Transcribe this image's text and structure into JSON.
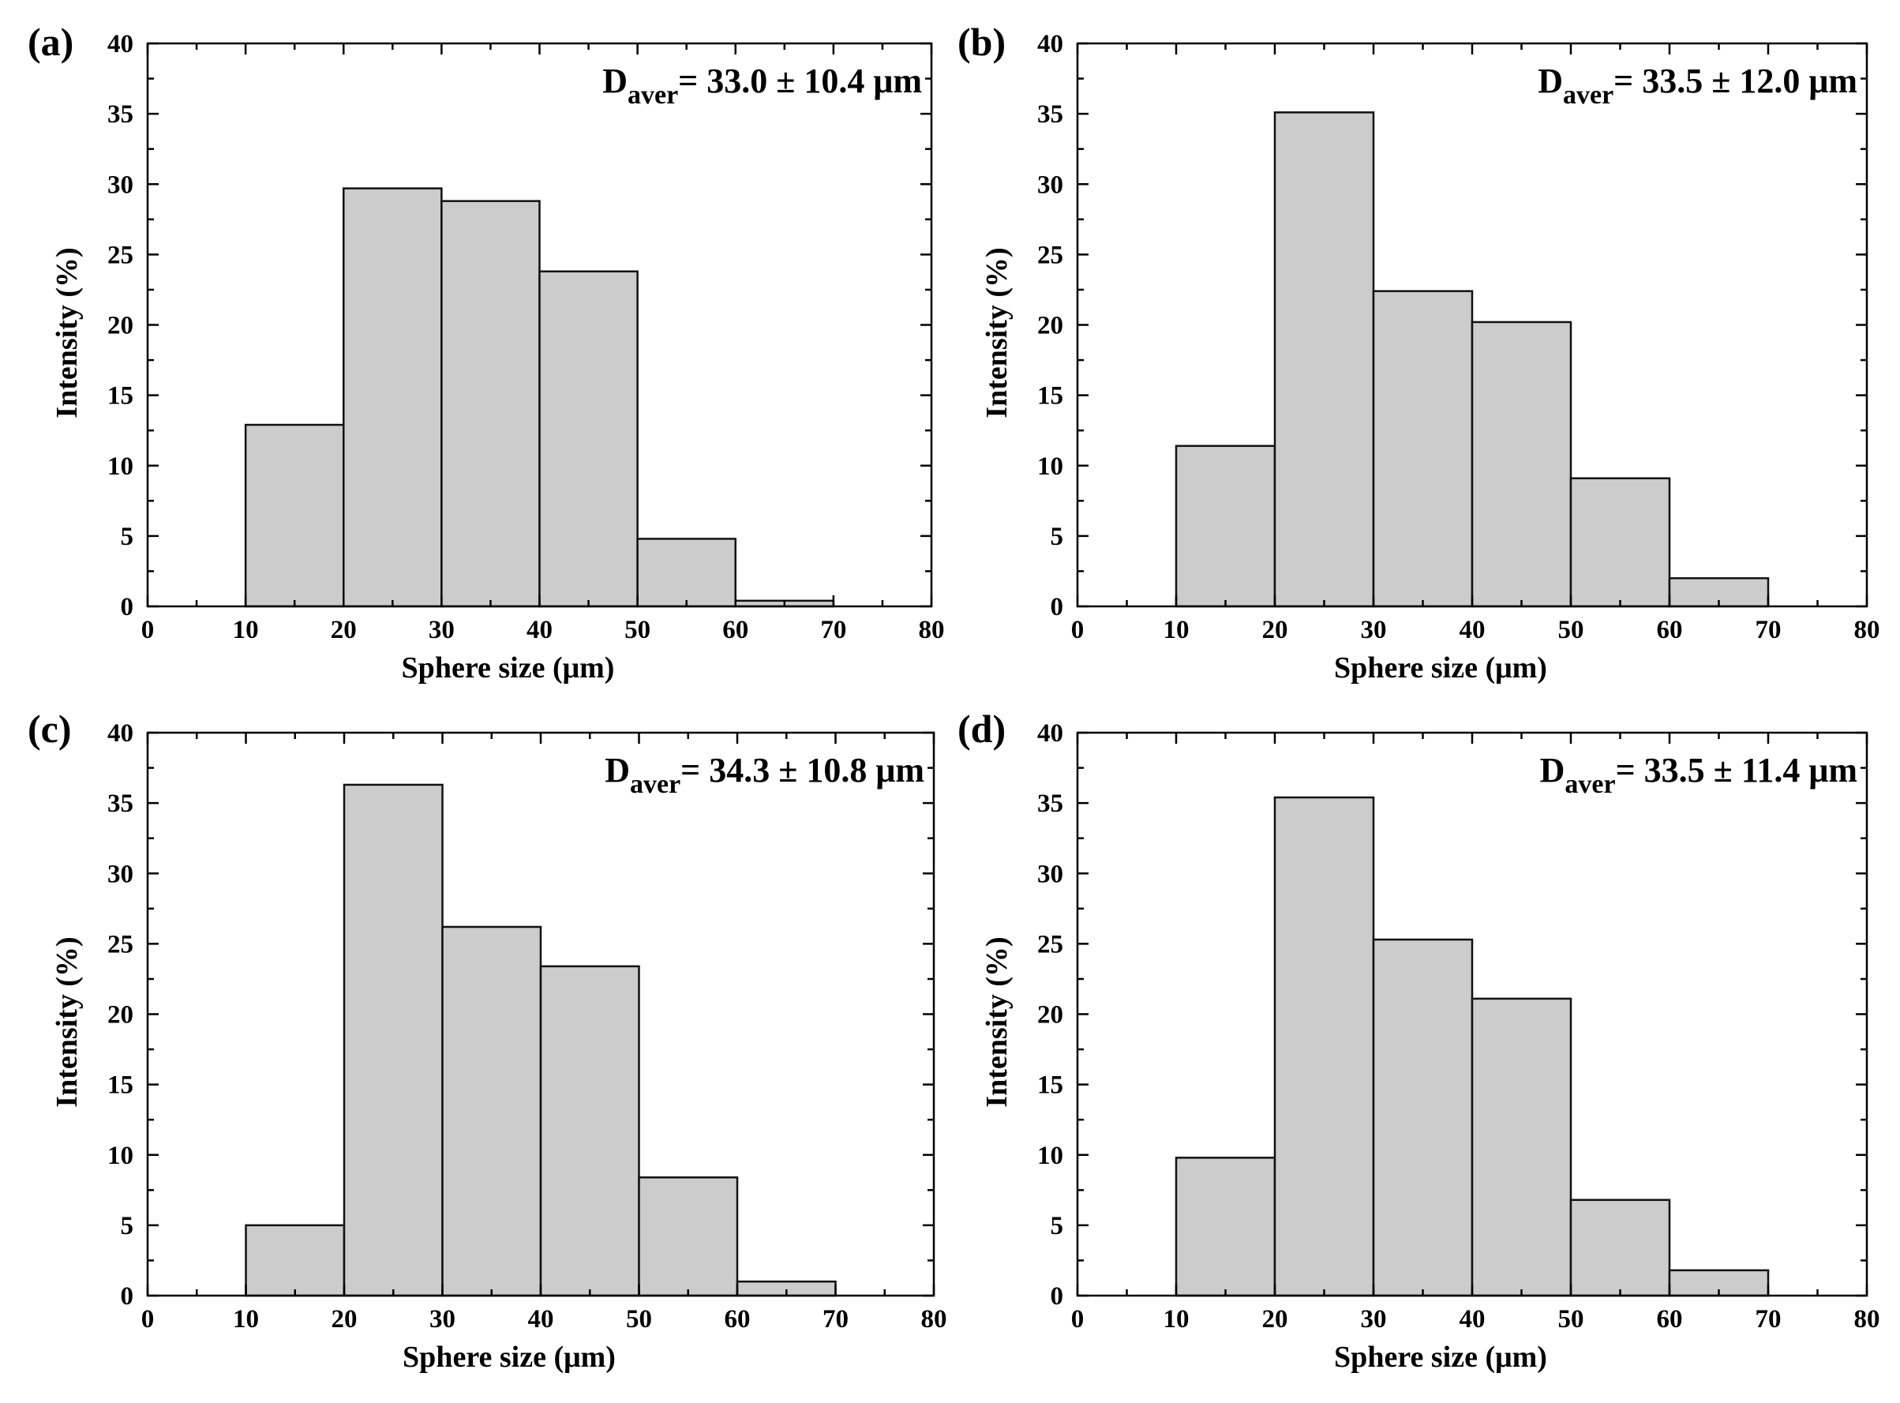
{
  "figure": {
    "bar_color": "#cccccc",
    "edge_color": "#111111"
  },
  "chart_data": [
    {
      "type": "bar",
      "panel": "(a)",
      "bin_edges": [
        10,
        20,
        30,
        40,
        50,
        60,
        70
      ],
      "values": [
        12.9,
        29.7,
        28.8,
        23.8,
        4.8,
        0.4
      ],
      "xlabel": "Sphere size (μm)",
      "ylabel": "Intensity (%)",
      "xlim": [
        0,
        80
      ],
      "ylim": [
        0,
        40
      ],
      "xticks": [
        "0",
        "10",
        "20",
        "30",
        "40",
        "50",
        "60",
        "70",
        "80"
      ],
      "yticks": [
        "0",
        "5",
        "10",
        "15",
        "20",
        "25",
        "30",
        "35",
        "40"
      ],
      "annotation": {
        "main": "D",
        "sub": "aver",
        "text": "= 33.0 ± 10.4 μm"
      },
      "grid": false
    },
    {
      "type": "bar",
      "panel": "(b)",
      "bin_edges": [
        10,
        20,
        30,
        40,
        50,
        60,
        70
      ],
      "values": [
        11.4,
        35.1,
        22.4,
        20.2,
        9.1,
        2.0
      ],
      "xlabel": "Sphere size (μm)",
      "ylabel": "Intensity (%)",
      "xlim": [
        0,
        80
      ],
      "ylim": [
        0,
        40
      ],
      "xticks": [
        "0",
        "10",
        "20",
        "30",
        "40",
        "50",
        "60",
        "70",
        "80"
      ],
      "yticks": [
        "0",
        "5",
        "10",
        "15",
        "20",
        "25",
        "30",
        "35",
        "40"
      ],
      "annotation": {
        "main": "D",
        "sub": "aver",
        "text": "= 33.5 ± 12.0 μm"
      },
      "grid": false
    },
    {
      "type": "bar",
      "panel": "(c)",
      "bin_edges": [
        10,
        20,
        30,
        40,
        50,
        60,
        70
      ],
      "values": [
        5.0,
        36.3,
        26.2,
        23.4,
        8.4,
        1.0
      ],
      "xlabel": "Sphere size (μm)",
      "ylabel": "Intensity (%)",
      "xlim": [
        0,
        80
      ],
      "ylim": [
        0,
        40
      ],
      "xticks": [
        "0",
        "10",
        "20",
        "30",
        "40",
        "50",
        "60",
        "70",
        "80"
      ],
      "yticks": [
        "0",
        "5",
        "10",
        "15",
        "20",
        "25",
        "30",
        "35",
        "40"
      ],
      "annotation": {
        "main": "D",
        "sub": "aver",
        "text": "= 34.3 ± 10.8 μm"
      },
      "grid": false
    },
    {
      "type": "bar",
      "panel": "(d)",
      "bin_edges": [
        10,
        20,
        30,
        40,
        50,
        60,
        70
      ],
      "values": [
        9.8,
        35.4,
        25.3,
        21.1,
        6.8,
        1.8
      ],
      "xlabel": "Sphere size (μm)",
      "ylabel": "Intensity (%)",
      "xlim": [
        0,
        80
      ],
      "ylim": [
        0,
        40
      ],
      "xticks": [
        "0",
        "10",
        "20",
        "30",
        "40",
        "50",
        "60",
        "70",
        "80"
      ],
      "yticks": [
        "0",
        "5",
        "10",
        "15",
        "20",
        "25",
        "30",
        "35",
        "40"
      ],
      "annotation": {
        "main": "D",
        "sub": "aver",
        "text": "= 33.5 ± 11.4 μm"
      },
      "grid": false
    }
  ]
}
